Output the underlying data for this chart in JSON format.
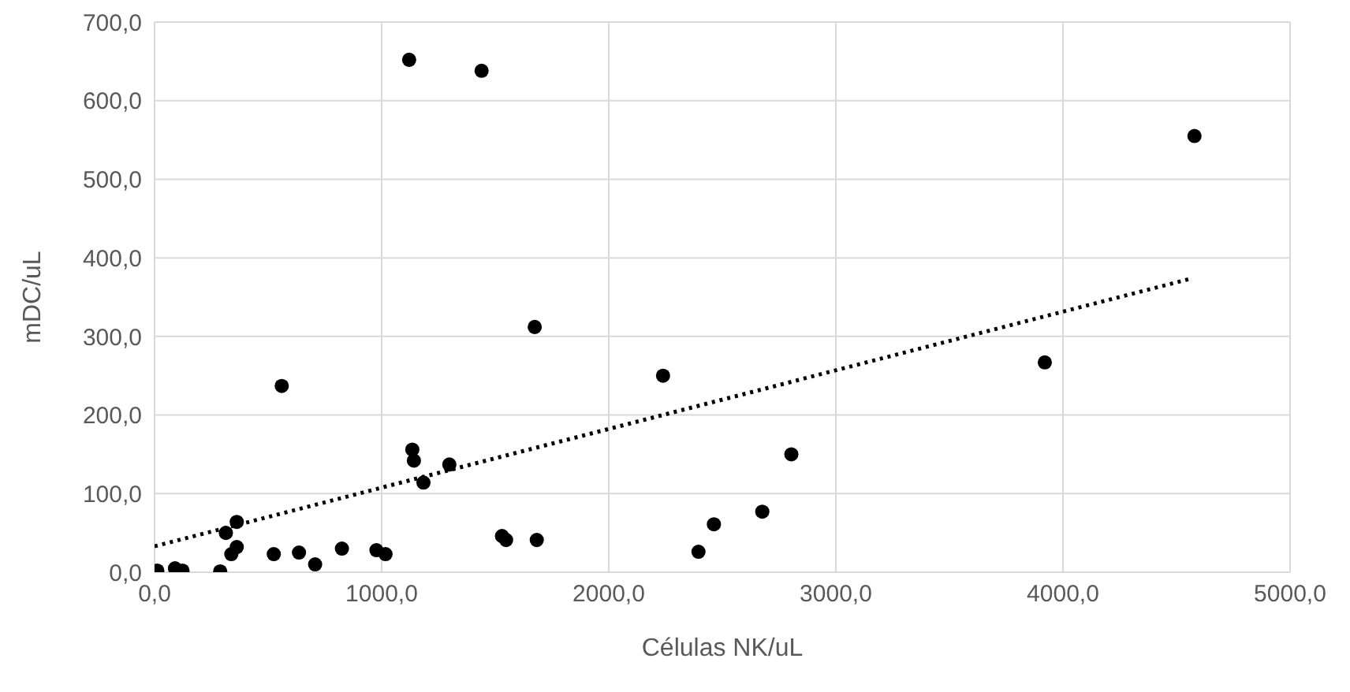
{
  "chart_data": {
    "type": "scatter",
    "xlabel": "Células NK/uL",
    "ylabel": "mDC/uL",
    "series": [
      {
        "color": "#000000",
        "marker": "circle",
        "x": [
          12,
          90,
          123,
          289,
          314,
          338,
          362,
          362,
          525,
          560,
          636,
          707,
          825,
          977,
          1017,
          1121,
          1135,
          1142,
          1184,
          1298,
          1440,
          1530,
          1548,
          1674,
          1683,
          2239,
          2395,
          2463,
          2676,
          2804,
          3920,
          4579
        ],
        "values": [
          2,
          5,
          2,
          1,
          50,
          23,
          32,
          64,
          23,
          237,
          25,
          10,
          30,
          28,
          23,
          652,
          156,
          142,
          114,
          137,
          638,
          46,
          41,
          312,
          41,
          250,
          26,
          61,
          77,
          150,
          267,
          555
        ]
      },
      {
        "type": "line",
        "color": "#000000",
        "marker": "none",
        "line_style": "dotted",
        "x": [
          0,
          4556
        ],
        "values": [
          33,
          373
        ]
      }
    ],
    "xlim": [
      0,
      5000
    ],
    "xticks": [
      {
        "value": 0,
        "label": "0,0"
      },
      {
        "value": 1000,
        "label": "1000,0"
      },
      {
        "value": 2000,
        "label": "2000,0"
      },
      {
        "value": 3000,
        "label": "3000,0"
      },
      {
        "value": 4000,
        "label": "4000,0"
      },
      {
        "value": 5000,
        "label": "5000,0"
      }
    ],
    "ylim": [
      0,
      700
    ],
    "yticks": [
      {
        "value": 0,
        "label": "0,0"
      },
      {
        "value": 100,
        "label": "100,0"
      },
      {
        "value": 200,
        "label": "200,0"
      },
      {
        "value": 300,
        "label": "300,0"
      },
      {
        "value": 400,
        "label": "400,0"
      },
      {
        "value": 500,
        "label": "500,0"
      },
      {
        "value": 600,
        "label": "600,0"
      },
      {
        "value": 700,
        "label": "700,0"
      }
    ],
    "grid": true
  }
}
